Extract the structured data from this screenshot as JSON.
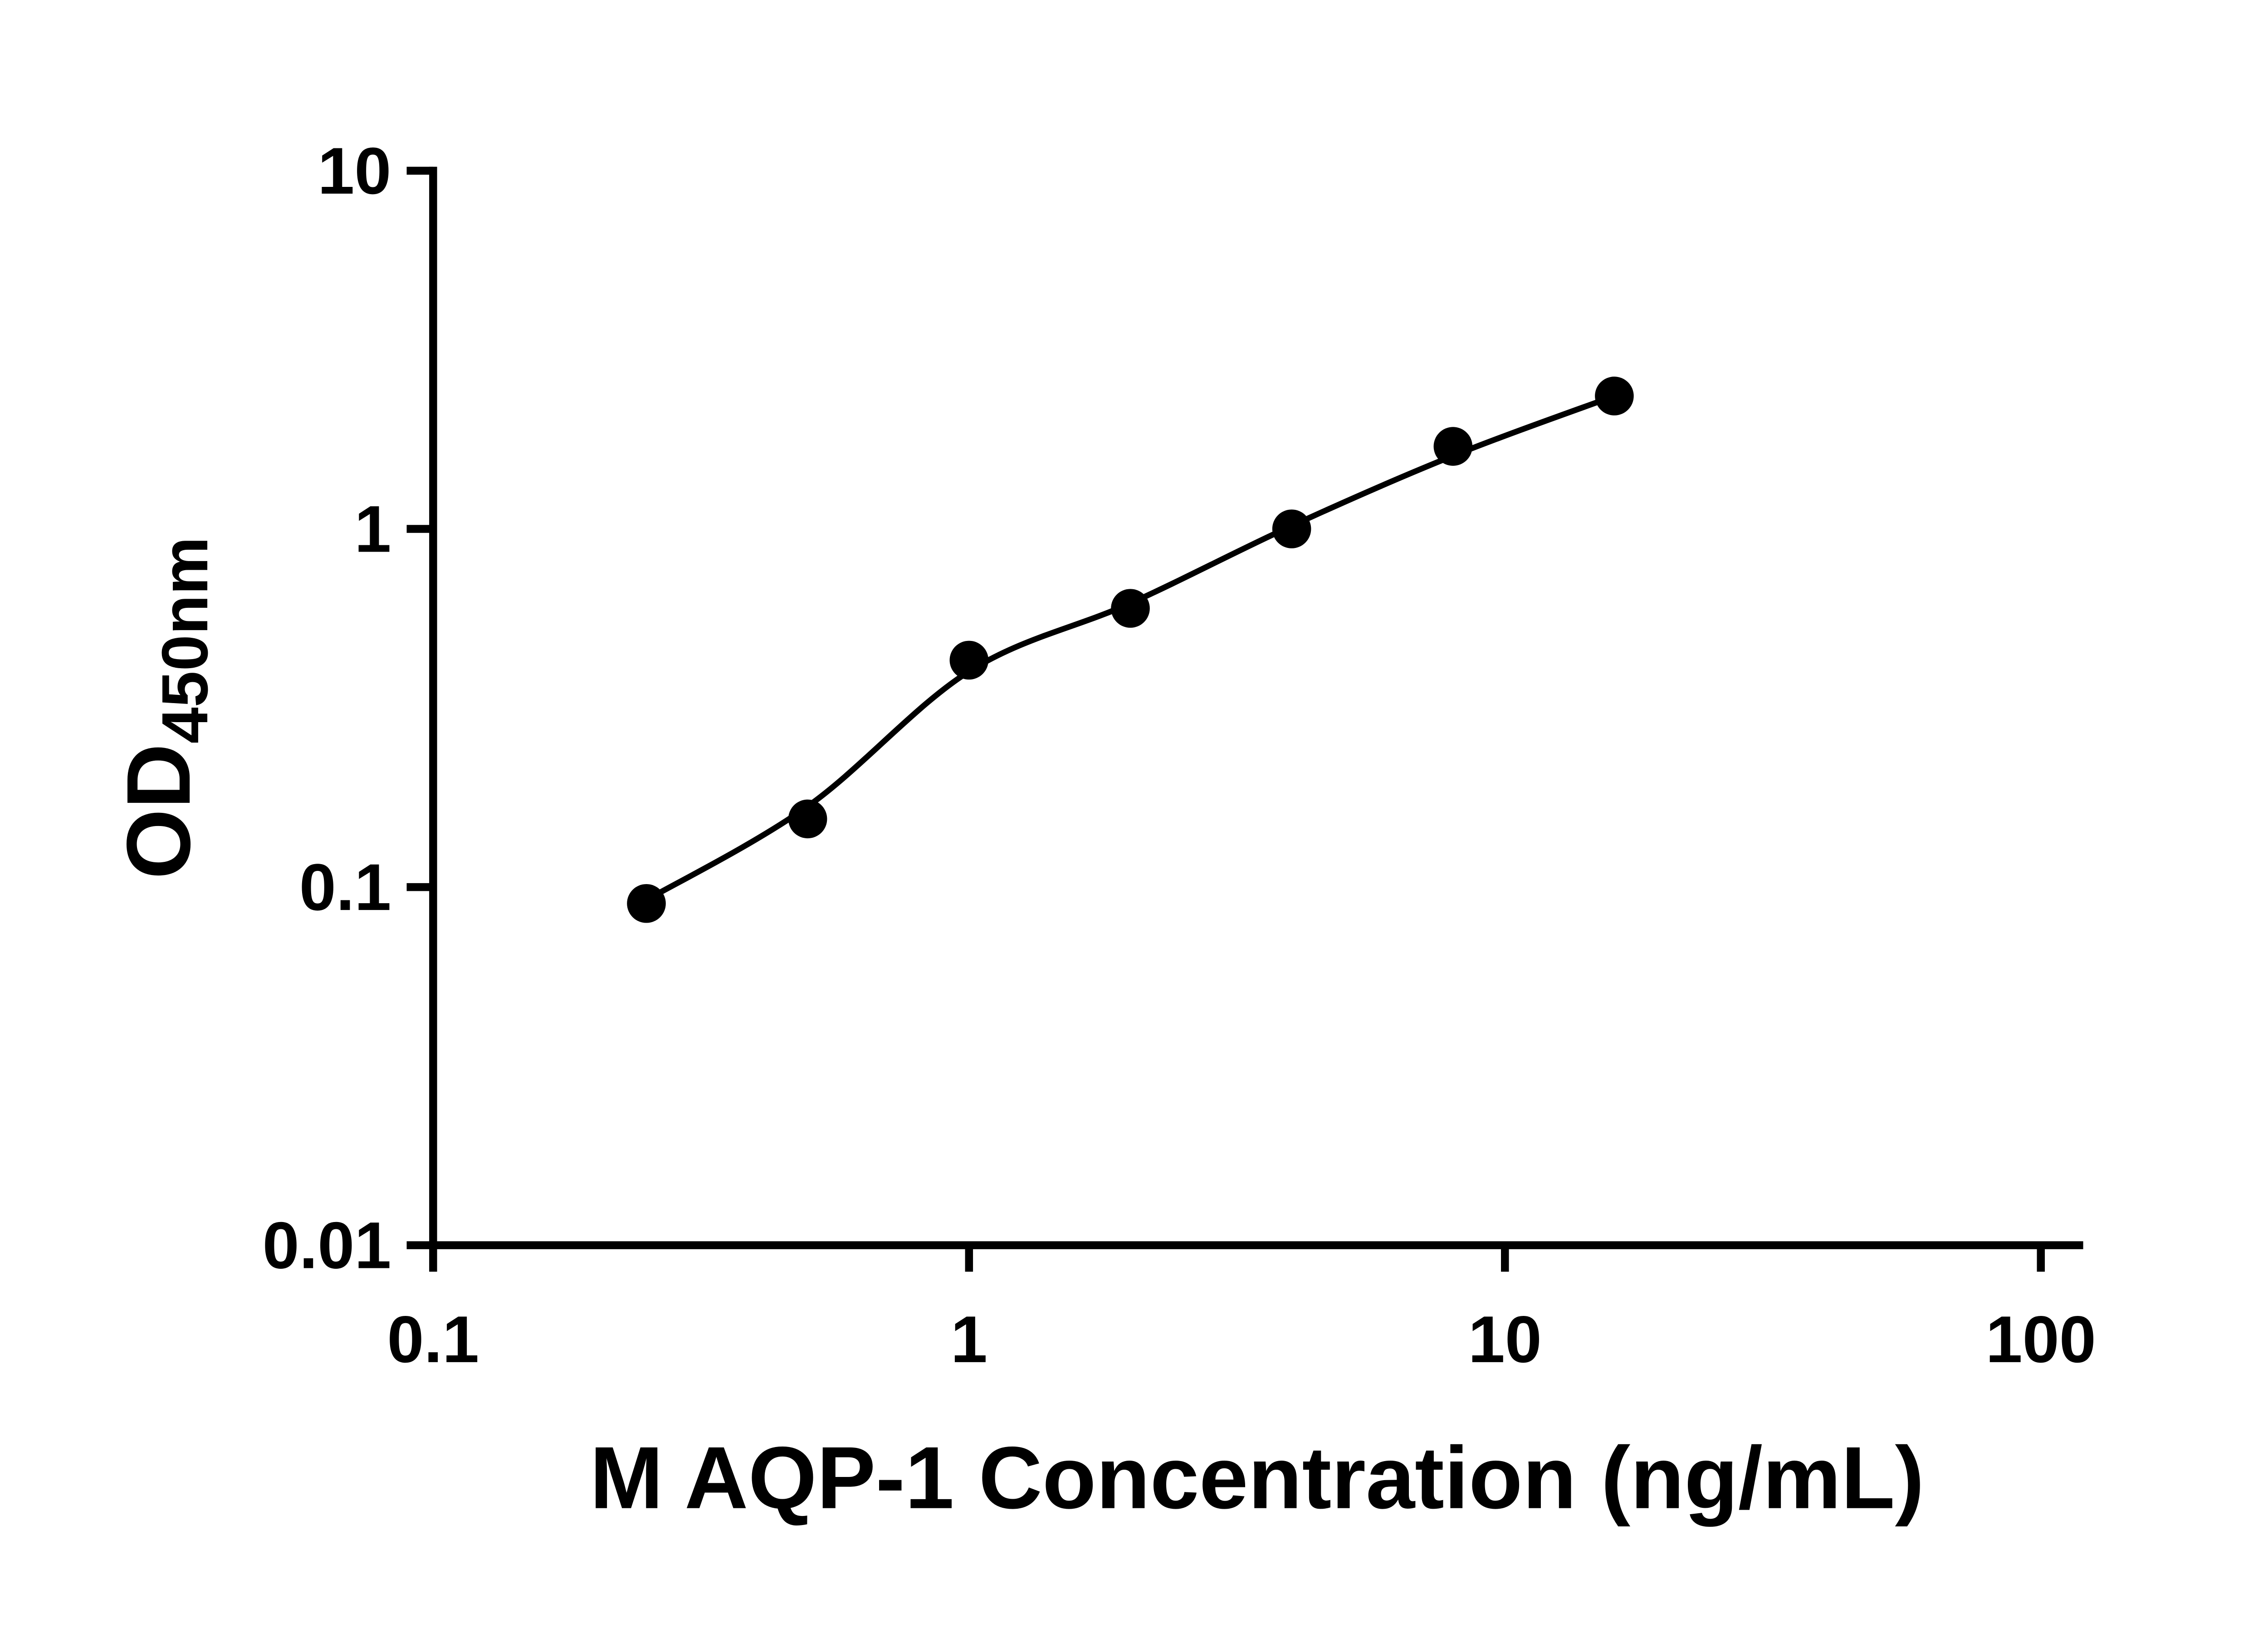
{
  "figure": {
    "background_color": "#ffffff",
    "axis_color": "#000000"
  },
  "chart_data": {
    "type": "scatter",
    "title": "",
    "xlabel": "M AQP-1 Concentration (ng/mL)",
    "ylabel": "OD450nm",
    "ylabel_parts": {
      "main": "OD",
      "subscript": "450nm"
    },
    "x_scale": "log",
    "y_scale": "log",
    "xlim": [
      0.1,
      100
    ],
    "ylim": [
      0.01,
      10
    ],
    "grid": false,
    "legend": false,
    "x_ticks": [
      {
        "value": 0.1,
        "label": "0.1"
      },
      {
        "value": 1,
        "label": "1"
      },
      {
        "value": 10,
        "label": "10"
      },
      {
        "value": 100,
        "label": "100"
      }
    ],
    "y_ticks": [
      {
        "value": 0.01,
        "label": "0.01"
      },
      {
        "value": 0.1,
        "label": "0.1"
      },
      {
        "value": 1,
        "label": "1"
      },
      {
        "value": 10,
        "label": "10"
      }
    ],
    "series": [
      {
        "marker": "circle",
        "marker_color": "#000000",
        "line_color": "#000000",
        "points": [
          {
            "x": 0.25,
            "y": 0.09
          },
          {
            "x": 0.5,
            "y": 0.155
          },
          {
            "x": 1,
            "y": 0.43
          },
          {
            "x": 2,
            "y": 0.6
          },
          {
            "x": 4,
            "y": 1.0
          },
          {
            "x": 8,
            "y": 1.7
          },
          {
            "x": 16,
            "y": 2.35
          }
        ]
      }
    ],
    "fit_curve": [
      {
        "x": 0.25,
        "y": 0.092
      },
      {
        "x": 0.5,
        "y": 0.168
      },
      {
        "x": 1,
        "y": 0.4
      },
      {
        "x": 2,
        "y": 0.62
      },
      {
        "x": 4,
        "y": 1.02
      },
      {
        "x": 8,
        "y": 1.6
      },
      {
        "x": 16,
        "y": 2.35
      }
    ]
  }
}
